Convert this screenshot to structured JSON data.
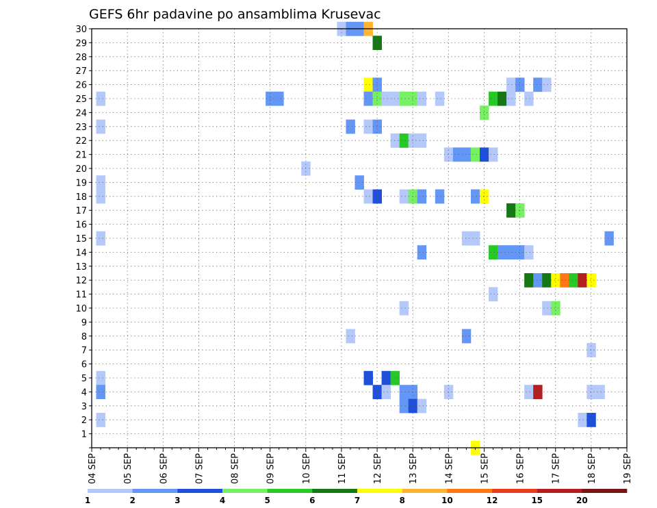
{
  "chart_data": {
    "type": "heatmap",
    "title": "GEFS 6hr padavine po ansamblima Krusevac",
    "xlabel": "",
    "ylabel": "",
    "y_ticks": [
      "1",
      "2",
      "3",
      "4",
      "5",
      "6",
      "7",
      "8",
      "9",
      "10",
      "11",
      "12",
      "13",
      "14",
      "15",
      "16",
      "17",
      "18",
      "19",
      "20",
      "21",
      "22",
      "23",
      "24",
      "25",
      "26",
      "27",
      "28",
      "29",
      "30"
    ],
    "x_ticks": [
      "04 SEP",
      "05 SEP",
      "06 SEP",
      "07 SEP",
      "08 SEP",
      "09 SEP",
      "10 SEP",
      "11 SEP",
      "12 SEP",
      "13 SEP",
      "14 SEP",
      "15 SEP",
      "16 SEP",
      "17 SEP",
      "18 SEP",
      "19 SEP"
    ],
    "xlim": [
      "04 SEP 00z",
      "19 SEP 00z"
    ],
    "ylim": [
      0,
      30
    ],
    "grid": true,
    "colorbar": {
      "tick_labels": [
        "1",
        "2",
        "3",
        "4",
        "5",
        "6",
        "7",
        "8",
        "10",
        "12",
        "15",
        "20"
      ],
      "colors": [
        "#b4c8fa",
        "#6496f5",
        "#1e50dc",
        "#78f064",
        "#28c828",
        "#147814",
        "#ffff00",
        "#ffb432",
        "#ff7814",
        "#f03c1e",
        "#b41e1e",
        "#781414"
      ]
    },
    "cells_note_units": "x = days from 04 SEP 00z in 6h steps, y = ensemble member, v = precipitation class value",
    "cells": [
      {
        "x": 0.25,
        "y": 25,
        "v": 1
      },
      {
        "x": 0.25,
        "y": 23,
        "v": 1
      },
      {
        "x": 0.25,
        "y": 19,
        "v": 1
      },
      {
        "x": 0.25,
        "y": 18,
        "v": 1
      },
      {
        "x": 0.25,
        "y": 15,
        "v": 1
      },
      {
        "x": 0.25,
        "y": 5,
        "v": 1
      },
      {
        "x": 0.25,
        "y": 4,
        "v": 2
      },
      {
        "x": 0.25,
        "y": 2,
        "v": 1
      },
      {
        "x": 5.0,
        "y": 25,
        "v": 2
      },
      {
        "x": 5.25,
        "y": 25,
        "v": 2
      },
      {
        "x": 6.0,
        "y": 20,
        "v": 1
      },
      {
        "x": 7.0,
        "y": 30,
        "v": 1
      },
      {
        "x": 7.25,
        "y": 30,
        "v": 2
      },
      {
        "x": 7.5,
        "y": 30,
        "v": 2
      },
      {
        "x": 7.75,
        "y": 30,
        "v": 8
      },
      {
        "x": 7.25,
        "y": 23,
        "v": 2
      },
      {
        "x": 7.5,
        "y": 19,
        "v": 2
      },
      {
        "x": 7.25,
        "y": 8,
        "v": 1
      },
      {
        "x": 8.0,
        "y": 29,
        "v": 6
      },
      {
        "x": 7.75,
        "y": 26,
        "v": 7
      },
      {
        "x": 8.0,
        "y": 26,
        "v": 2
      },
      {
        "x": 7.75,
        "y": 25,
        "v": 2
      },
      {
        "x": 8.0,
        "y": 25,
        "v": 4
      },
      {
        "x": 8.25,
        "y": 25,
        "v": 1
      },
      {
        "x": 8.5,
        "y": 25,
        "v": 1
      },
      {
        "x": 8.75,
        "y": 25,
        "v": 4
      },
      {
        "x": 9.0,
        "y": 25,
        "v": 4
      },
      {
        "x": 9.25,
        "y": 25,
        "v": 1
      },
      {
        "x": 9.75,
        "y": 25,
        "v": 1
      },
      {
        "x": 7.75,
        "y": 23,
        "v": 1
      },
      {
        "x": 8.0,
        "y": 23,
        "v": 2
      },
      {
        "x": 8.5,
        "y": 22,
        "v": 1
      },
      {
        "x": 8.75,
        "y": 22,
        "v": 5
      },
      {
        "x": 9.0,
        "y": 22,
        "v": 1
      },
      {
        "x": 9.25,
        "y": 22,
        "v": 1
      },
      {
        "x": 7.75,
        "y": 18,
        "v": 1
      },
      {
        "x": 8.0,
        "y": 18,
        "v": 3
      },
      {
        "x": 8.75,
        "y": 18,
        "v": 1
      },
      {
        "x": 9.0,
        "y": 18,
        "v": 4
      },
      {
        "x": 9.25,
        "y": 18,
        "v": 2
      },
      {
        "x": 9.75,
        "y": 18,
        "v": 2
      },
      {
        "x": 9.25,
        "y": 14,
        "v": 2
      },
      {
        "x": 8.75,
        "y": 10,
        "v": 1
      },
      {
        "x": 7.75,
        "y": 5,
        "v": 3
      },
      {
        "x": 8.25,
        "y": 5,
        "v": 3
      },
      {
        "x": 8.5,
        "y": 5,
        "v": 5
      },
      {
        "x": 8.0,
        "y": 4,
        "v": 3
      },
      {
        "x": 8.25,
        "y": 4,
        "v": 1
      },
      {
        "x": 8.75,
        "y": 4,
        "v": 2
      },
      {
        "x": 9.0,
        "y": 4,
        "v": 2
      },
      {
        "x": 8.75,
        "y": 3,
        "v": 2
      },
      {
        "x": 9.0,
        "y": 3,
        "v": 3
      },
      {
        "x": 9.25,
        "y": 3,
        "v": 1
      },
      {
        "x": 10.0,
        "y": 21,
        "v": 1
      },
      {
        "x": 10.25,
        "y": 21,
        "v": 2
      },
      {
        "x": 10.5,
        "y": 21,
        "v": 2
      },
      {
        "x": 10.75,
        "y": 21,
        "v": 4
      },
      {
        "x": 11.0,
        "y": 21,
        "v": 3
      },
      {
        "x": 11.25,
        "y": 21,
        "v": 1
      },
      {
        "x": 11.0,
        "y": 24,
        "v": 4
      },
      {
        "x": 10.75,
        "y": 18,
        "v": 2
      },
      {
        "x": 11.0,
        "y": 18,
        "v": 7
      },
      {
        "x": 10.5,
        "y": 15,
        "v": 1
      },
      {
        "x": 10.75,
        "y": 15,
        "v": 1
      },
      {
        "x": 10.5,
        "y": 8,
        "v": 2
      },
      {
        "x": 10.0,
        "y": 4,
        "v": 1
      },
      {
        "x": 10.75,
        "y": 0,
        "v": 7
      },
      {
        "x": 11.25,
        "y": 25,
        "v": 5
      },
      {
        "x": 11.5,
        "y": 25,
        "v": 6
      },
      {
        "x": 11.75,
        "y": 25,
        "v": 1
      },
      {
        "x": 12.25,
        "y": 25,
        "v": 1
      },
      {
        "x": 11.75,
        "y": 26,
        "v": 1
      },
      {
        "x": 12.0,
        "y": 26,
        "v": 2
      },
      {
        "x": 12.5,
        "y": 26,
        "v": 2
      },
      {
        "x": 12.75,
        "y": 26,
        "v": 1
      },
      {
        "x": 11.75,
        "y": 17,
        "v": 6
      },
      {
        "x": 12.0,
        "y": 17,
        "v": 4
      },
      {
        "x": 11.25,
        "y": 14,
        "v": 5
      },
      {
        "x": 11.5,
        "y": 14,
        "v": 2
      },
      {
        "x": 11.75,
        "y": 14,
        "v": 2
      },
      {
        "x": 12.0,
        "y": 14,
        "v": 2
      },
      {
        "x": 12.25,
        "y": 14,
        "v": 1
      },
      {
        "x": 12.25,
        "y": 12,
        "v": 6
      },
      {
        "x": 12.5,
        "y": 12,
        "v": 2
      },
      {
        "x": 12.75,
        "y": 12,
        "v": 6
      },
      {
        "x": 13.0,
        "y": 12,
        "v": 7
      },
      {
        "x": 13.25,
        "y": 12,
        "v": 10
      },
      {
        "x": 13.5,
        "y": 12,
        "v": 5
      },
      {
        "x": 13.75,
        "y": 12,
        "v": 15
      },
      {
        "x": 14.0,
        "y": 12,
        "v": 7
      },
      {
        "x": 11.25,
        "y": 11,
        "v": 1
      },
      {
        "x": 12.75,
        "y": 10,
        "v": 1
      },
      {
        "x": 13.0,
        "y": 10,
        "v": 4
      },
      {
        "x": 12.25,
        "y": 4,
        "v": 1
      },
      {
        "x": 12.5,
        "y": 4,
        "v": 15
      },
      {
        "x": 14.0,
        "y": 7,
        "v": 1
      },
      {
        "x": 14.0,
        "y": 4,
        "v": 1
      },
      {
        "x": 14.25,
        "y": 4,
        "v": 1
      },
      {
        "x": 13.75,
        "y": 2,
        "v": 1
      },
      {
        "x": 14.0,
        "y": 2,
        "v": 3
      },
      {
        "x": 14.5,
        "y": 15,
        "v": 2
      }
    ]
  }
}
